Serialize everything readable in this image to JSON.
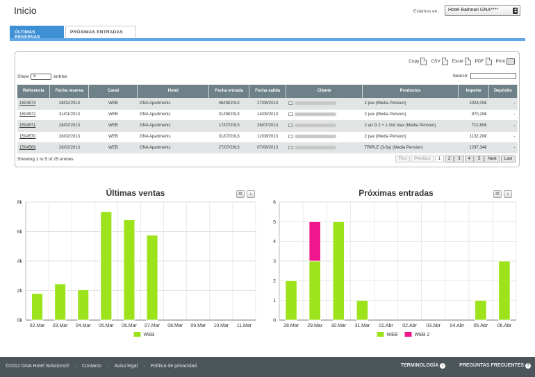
{
  "header": {
    "title": "Inicio",
    "estamos_label": "Estamos en:",
    "hotel_selected": "Hotel Balneari GNA****"
  },
  "tabs": [
    {
      "label": "ÚLTIMAS RESERVAS",
      "active": true
    },
    {
      "label": "PRÓXIMAS ENTRADAS",
      "active": false
    }
  ],
  "toolbar": {
    "copy": "Copy",
    "csv": "CSV",
    "excel": "Excel",
    "pdf": "PDF",
    "print": "Print"
  },
  "table_controls": {
    "show_label": "Show",
    "show_value": "5",
    "entries_label": "entries",
    "search_label": "Search:",
    "showing_text": "Showing 1 to 5 of 25 entries"
  },
  "table": {
    "columns": [
      "Referencia",
      "Fecha reserva",
      "Canal",
      "Hotel",
      "Fecha entrada",
      "Fecha salida",
      "Cliente",
      "Productos",
      "Importe",
      "Depósito"
    ],
    "rows": [
      {
        "ref": "1504573",
        "fecha_reserva": "28/02/2013",
        "canal": "WEB",
        "hotel": "GNA Apartments",
        "entrada": "06/08/2013",
        "salida": "27/08/2013",
        "producto": "2 pax (Media Pension)",
        "importe": "2024,00€",
        "deposito": "-"
      },
      {
        "ref": "1504572",
        "fecha_reserva": "31/01/2013",
        "canal": "WEB",
        "hotel": "GNA Apartments",
        "entrada": "31/08/2013",
        "salida": "14/09/2013",
        "producto": "2 pax (Media Pension)",
        "importe": "970,20€",
        "deposito": "-"
      },
      {
        "ref": "1504571",
        "fecha_reserva": "28/02/2013",
        "canal": "WEB",
        "hotel": "GNA Apartments",
        "entrada": "17/07/2013",
        "salida": "26/07/2013",
        "producto": "2 ad O 2 + 1 chd max (Media Pension)",
        "importe": "712,80€",
        "deposito": "-"
      },
      {
        "ref": "1504570",
        "fecha_reserva": "28/02/2013",
        "canal": "WEB",
        "hotel": "GNA Apartments",
        "entrada": "31/07/2013",
        "salida": "12/08/2013",
        "producto": "2 pax (Media Pension)",
        "importe": "1132,20€",
        "deposito": "-"
      },
      {
        "ref": "1504569",
        "fecha_reserva": "28/02/2013",
        "canal": "WEB",
        "hotel": "GNA Apartments",
        "entrada": "27/07/2013",
        "salida": "07/08/2013",
        "producto": "TRIPLE (3-3p) (Media Pension)",
        "importe": "1297,34€",
        "deposito": "-"
      }
    ]
  },
  "pager": {
    "first": "First",
    "previous": "Previous",
    "pages": [
      "1",
      "2",
      "3",
      "4",
      "5"
    ],
    "next": "Next",
    "last": "Last"
  },
  "colors": {
    "accent": "#3d8fd6",
    "bar_web": "#9de31c",
    "bar_web2": "#f0178c",
    "table_header": "#6e8188",
    "footer": "#4c5559"
  },
  "chart_data": [
    {
      "type": "bar",
      "title": "Últimas ventas",
      "categories": [
        "02.Mar",
        "03.Mar",
        "04.Mar",
        "05.Mar",
        "06.Mar",
        "07.Mar",
        "08.Mar",
        "09.Mar",
        "10.Mar",
        "11.Mar"
      ],
      "yticks": [
        "0k",
        "2k",
        "4k",
        "6k",
        "8k"
      ],
      "ylim": [
        0,
        8000
      ],
      "series": [
        {
          "name": "WEB",
          "values": [
            1800,
            2450,
            2050,
            7350,
            6800,
            5750,
            0,
            0,
            0,
            0
          ]
        }
      ],
      "legend": "bottom"
    },
    {
      "type": "bar",
      "title": "Próximas entradas",
      "categories": [
        "28.Mar",
        "29.Mar",
        "30.Mar",
        "31.Mar",
        "01.Abr",
        "02.Abr",
        "03.Abr",
        "04.Abr",
        "05.Abr",
        "06.Abr"
      ],
      "yticks": [
        "0",
        "1",
        "2",
        "3",
        "4",
        "5",
        "6"
      ],
      "ylim": [
        0,
        6
      ],
      "stacked": true,
      "series": [
        {
          "name": "WEB",
          "values": [
            2,
            3,
            5,
            1,
            0,
            0,
            0,
            0,
            1,
            3
          ]
        },
        {
          "name": "WEB 2",
          "values": [
            0,
            2,
            0,
            0,
            0,
            0,
            0,
            0,
            0,
            0
          ]
        }
      ],
      "legend": "bottom"
    }
  ],
  "footer": {
    "copyright": "©2012 GNA Hotel Solutions®",
    "links": [
      "Contacto",
      "Aviso legal",
      "Política de privacidad"
    ],
    "terminologia": "TERMINOLOGÍA",
    "preguntas": "PREGUNTAS FRECUENTES"
  }
}
